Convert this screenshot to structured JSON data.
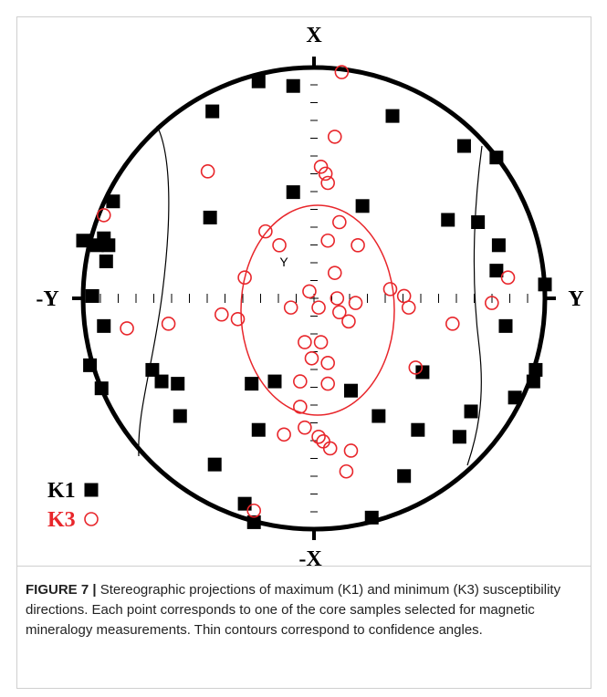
{
  "chart_data": {
    "type": "scatter",
    "axis_labels": {
      "top": "X",
      "bottom": "-X",
      "left": "-Y",
      "right": "Y"
    },
    "annotations": [
      "Y"
    ],
    "xlim": [
      -1,
      1
    ],
    "ylim": [
      -1,
      1
    ],
    "series": [
      {
        "name": "K1",
        "color": "#000000",
        "marker": "square",
        "x": [
          -0.24,
          -0.09,
          -0.44,
          0.34,
          0.65,
          0.79,
          -0.09,
          0.21,
          -0.87,
          -0.45,
          0.58,
          0.71,
          -1.0,
          -0.94,
          -0.91,
          -0.89,
          -0.9,
          0.8,
          0.79,
          1.0,
          -0.96,
          -0.91,
          0.83,
          -0.97,
          -0.7,
          -0.66,
          -0.59,
          -0.27,
          -0.17,
          0.16,
          0.47,
          0.96,
          0.95,
          0.87,
          -0.92,
          -0.58,
          0.68,
          0.28,
          0.45,
          -0.24,
          0.63,
          -0.43,
          0.39,
          -0.3,
          -0.26,
          0.25
        ],
        "y": [
          0.94,
          0.92,
          0.81,
          0.79,
          0.66,
          0.61,
          0.46,
          0.4,
          0.42,
          0.35,
          0.34,
          0.33,
          0.25,
          0.23,
          0.26,
          0.23,
          0.16,
          0.23,
          0.12,
          0.06,
          0.01,
          -0.12,
          -0.12,
          -0.29,
          -0.31,
          -0.36,
          -0.37,
          -0.37,
          -0.36,
          -0.4,
          -0.32,
          -0.31,
          -0.36,
          -0.43,
          -0.39,
          -0.51,
          -0.49,
          -0.51,
          -0.57,
          -0.57,
          -0.6,
          -0.72,
          -0.77,
          -0.89,
          -0.97,
          -0.95
        ]
      },
      {
        "name": "K3",
        "color": "#e8262b",
        "marker": "circle",
        "x": [
          0.12,
          0.09,
          -0.46,
          0.03,
          0.05,
          0.06,
          -0.91,
          0.11,
          -0.21,
          0.06,
          0.19,
          -0.15,
          0.09,
          -0.3,
          0.33,
          0.39,
          0.41,
          0.18,
          0.1,
          0.02,
          -0.02,
          -0.1,
          -0.4,
          -0.33,
          -0.63,
          0.11,
          0.15,
          0.6,
          0.77,
          0.84,
          -0.81,
          -0.04,
          0.03,
          -0.01,
          0.06,
          0.06,
          -0.06,
          0.44,
          -0.06,
          -0.13,
          -0.04,
          0.04,
          0.07,
          0.16,
          0.02,
          0.14,
          -0.26
        ],
        "y": [
          0.98,
          0.7,
          0.55,
          0.57,
          0.54,
          0.5,
          0.36,
          0.33,
          0.29,
          0.25,
          0.23,
          0.23,
          0.11,
          0.09,
          0.04,
          0.01,
          -0.04,
          -0.02,
          0,
          -0.04,
          0.03,
          -0.04,
          -0.07,
          -0.09,
          -0.11,
          -0.06,
          -0.1,
          -0.11,
          -0.02,
          0.09,
          -0.13,
          -0.19,
          -0.19,
          -0.26,
          -0.37,
          -0.28,
          -0.36,
          -0.3,
          -0.47,
          -0.59,
          -0.56,
          -0.62,
          -0.65,
          -0.66,
          -0.6,
          -0.75,
          -0.92
        ]
      }
    ]
  },
  "caption": {
    "label": "FIGURE 7 |",
    "text": "Stereographic projections of maximum (K1) and minimum (K3) susceptibility directions. Each point corresponds to one of the core samples selected for magnetic mineralogy measurements. Thin contours correspond to confidence angles."
  }
}
